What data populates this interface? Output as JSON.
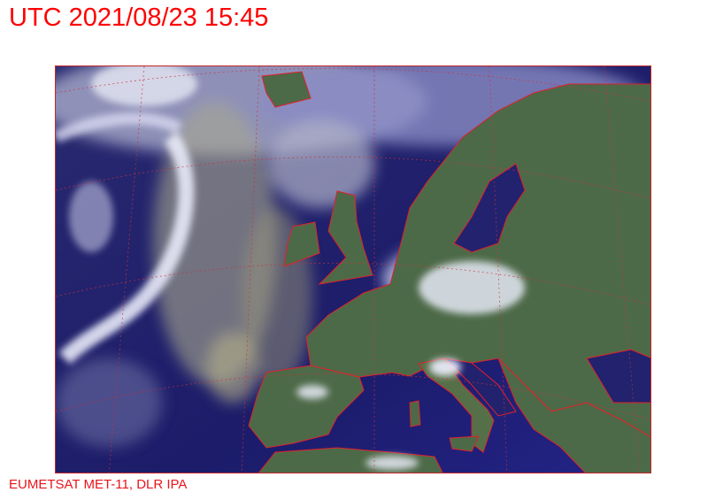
{
  "header": {
    "title": "UTC 2021/08/23 15:45"
  },
  "footer": {
    "credit": "EUMETSAT MET-11, DLR IPA"
  },
  "colors": {
    "title_text": "#ff0000",
    "coastline": "#e0202a",
    "ocean": "#1c1c6a",
    "land": "#4a6a4a",
    "cloud": "#dfe2f5"
  }
}
